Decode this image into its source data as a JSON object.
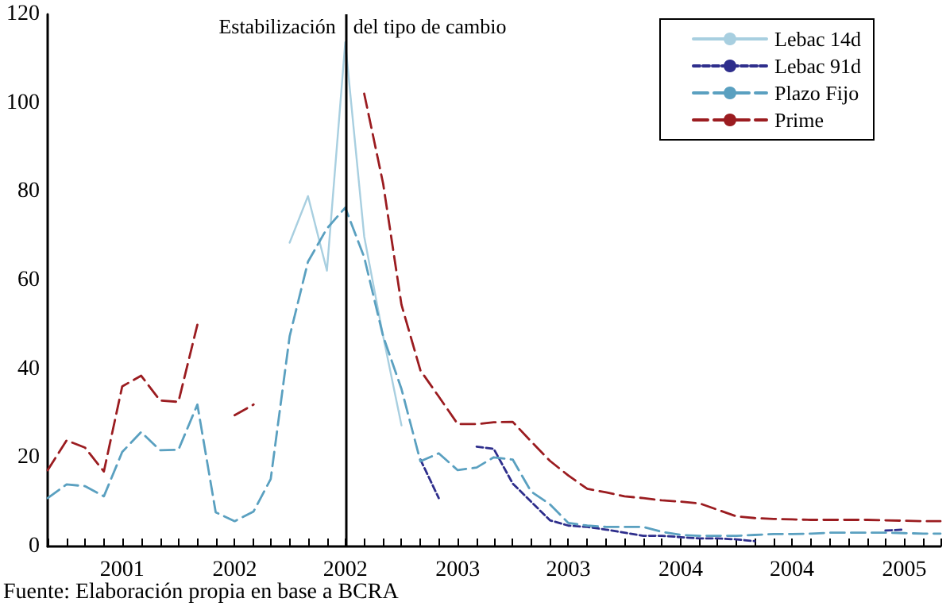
{
  "chart_data": {
    "type": "line",
    "x": [
      "2001-03",
      "2001-04",
      "2001-05",
      "2001-06",
      "2001-07",
      "2001-08",
      "2001-09",
      "2001-10",
      "2001-11",
      "2001-12",
      "2002-01",
      "2002-02",
      "2002-03",
      "2002-04",
      "2002-05",
      "2002-06",
      "2002-07",
      "2002-08",
      "2002-09",
      "2002-10",
      "2002-11",
      "2002-12",
      "2003-01",
      "2003-02",
      "2003-03",
      "2003-04",
      "2003-05",
      "2003-06",
      "2003-07",
      "2003-08",
      "2003-09",
      "2003-10",
      "2003-11",
      "2003-12",
      "2004-01",
      "2004-02",
      "2004-03",
      "2004-04",
      "2004-05",
      "2004-06",
      "2004-07",
      "2004-08",
      "2004-09",
      "2004-10",
      "2004-11",
      "2004-12",
      "2005-01",
      "2005-02",
      "2005-03"
    ],
    "series": [
      {
        "name": "Lebac 14d",
        "color": "#a8cfe0",
        "line_style": "solid",
        "values": [
          null,
          null,
          null,
          null,
          null,
          null,
          null,
          null,
          null,
          null,
          null,
          null,
          null,
          68.5,
          79.0,
          62.2,
          113.7,
          69.9,
          47.4,
          27.3,
          null,
          null,
          null,
          null,
          null,
          null,
          null,
          null,
          null,
          null,
          null,
          null,
          null,
          null,
          null,
          null,
          null,
          null,
          null,
          null,
          null,
          null,
          null,
          null,
          null,
          null,
          null,
          null,
          null
        ]
      },
      {
        "name": "Lebac 91d",
        "color": "#2e2e8c",
        "line_style": "dashed",
        "values": [
          null,
          null,
          null,
          null,
          null,
          null,
          null,
          null,
          null,
          null,
          null,
          null,
          null,
          null,
          null,
          null,
          null,
          null,
          null,
          null,
          19.6,
          10.9,
          null,
          22.5,
          22.0,
          14.2,
          10.1,
          5.9,
          4.7,
          4.4,
          3.8,
          3.1,
          2.4,
          2.4,
          2.1,
          1.8,
          1.8,
          1.6,
          1.2,
          null,
          null,
          null,
          null,
          null,
          null,
          3.6,
          3.8,
          null,
          null
        ]
      },
      {
        "name": "Plazo Fijo",
        "color": "#5aa0c0",
        "line_style": "dashed",
        "values": [
          10.9,
          14.0,
          13.6,
          11.3,
          21.3,
          25.8,
          21.7,
          21.8,
          32.0,
          7.7,
          5.7,
          7.9,
          15.2,
          47.4,
          64.2,
          71.7,
          76.4,
          65.2,
          47.4,
          35.5,
          19.2,
          21.0,
          17.2,
          17.8,
          20.1,
          19.6,
          12.4,
          9.5,
          5.3,
          4.7,
          4.4,
          4.4,
          4.4,
          3.3,
          2.6,
          2.4,
          2.4,
          2.4,
          2.6,
          2.8,
          2.8,
          2.9,
          3.1,
          3.1,
          3.1,
          3.1,
          3.0,
          2.9,
          2.9
        ]
      },
      {
        "name": "Prime",
        "color": "#9b1c20",
        "line_style": "dashed",
        "values": [
          17.2,
          23.9,
          22.3,
          16.9,
          36.1,
          38.5,
          32.9,
          32.6,
          50.0,
          null,
          29.6,
          32.0,
          null,
          null,
          null,
          null,
          null,
          102.1,
          81.8,
          54.5,
          39.7,
          33.8,
          27.6,
          27.6,
          28.0,
          28.1,
          23.7,
          19.3,
          16.0,
          13.0,
          12.2,
          11.3,
          10.9,
          10.4,
          10.1,
          9.7,
          8.3,
          6.8,
          6.4,
          6.2,
          6.1,
          6.0,
          6.0,
          6.0,
          6.0,
          5.9,
          5.8,
          5.7,
          5.7
        ]
      }
    ],
    "xlim": [
      "2001-03",
      "2005-03"
    ],
    "xticks": [
      {
        "value": "2001-03",
        "label": null
      },
      {
        "value": "2001-04",
        "label": null
      },
      {
        "value": "2001-05",
        "label": null
      },
      {
        "value": "2001-06",
        "label": null
      },
      {
        "value": "2001-07",
        "label": "2001"
      },
      {
        "value": "2001-08",
        "label": null
      },
      {
        "value": "2001-09",
        "label": null
      },
      {
        "value": "2001-10",
        "label": null
      },
      {
        "value": "2001-11",
        "label": null
      },
      {
        "value": "2001-12",
        "label": null
      },
      {
        "value": "2002-01",
        "label": "2002"
      },
      {
        "value": "2002-02",
        "label": null
      },
      {
        "value": "2002-03",
        "label": null
      },
      {
        "value": "2002-04",
        "label": null
      },
      {
        "value": "2002-05",
        "label": null
      },
      {
        "value": "2002-06",
        "label": null
      },
      {
        "value": "2002-07",
        "label": "2002"
      },
      {
        "value": "2002-08",
        "label": null
      },
      {
        "value": "2002-09",
        "label": null
      },
      {
        "value": "2002-10",
        "label": null
      },
      {
        "value": "2002-11",
        "label": null
      },
      {
        "value": "2002-12",
        "label": null
      },
      {
        "value": "2003-01",
        "label": "2003"
      },
      {
        "value": "2003-02",
        "label": null
      },
      {
        "value": "2003-03",
        "label": null
      },
      {
        "value": "2003-04",
        "label": null
      },
      {
        "value": "2003-05",
        "label": null
      },
      {
        "value": "2003-06",
        "label": null
      },
      {
        "value": "2003-07",
        "label": "2003"
      },
      {
        "value": "2003-08",
        "label": null
      },
      {
        "value": "2003-09",
        "label": null
      },
      {
        "value": "2003-10",
        "label": null
      },
      {
        "value": "2003-11",
        "label": null
      },
      {
        "value": "2003-12",
        "label": null
      },
      {
        "value": "2004-01",
        "label": "2004"
      },
      {
        "value": "2004-02",
        "label": null
      },
      {
        "value": "2004-03",
        "label": null
      },
      {
        "value": "2004-04",
        "label": null
      },
      {
        "value": "2004-05",
        "label": null
      },
      {
        "value": "2004-06",
        "label": null
      },
      {
        "value": "2004-07",
        "label": "2004"
      },
      {
        "value": "2004-08",
        "label": null
      },
      {
        "value": "2004-09",
        "label": null
      },
      {
        "value": "2004-10",
        "label": null
      },
      {
        "value": "2004-11",
        "label": null
      },
      {
        "value": "2004-12",
        "label": null
      },
      {
        "value": "2005-01",
        "label": "2005"
      },
      {
        "value": "2005-02",
        "label": null
      },
      {
        "value": "2005-03",
        "label": null
      }
    ],
    "ylim": [
      0,
      120
    ],
    "yticks": [
      0,
      20,
      40,
      60,
      80,
      100,
      120
    ],
    "grid": false,
    "legend": "top right",
    "marker": "none",
    "ref_lines": [
      {
        "axis": "x",
        "value": "2002-07",
        "color": "#000000"
      }
    ],
    "annotations": [
      "Estabilización",
      "del tipo de cambio",
      "Fuente: Elaboración propia en base a BCRA"
    ]
  }
}
